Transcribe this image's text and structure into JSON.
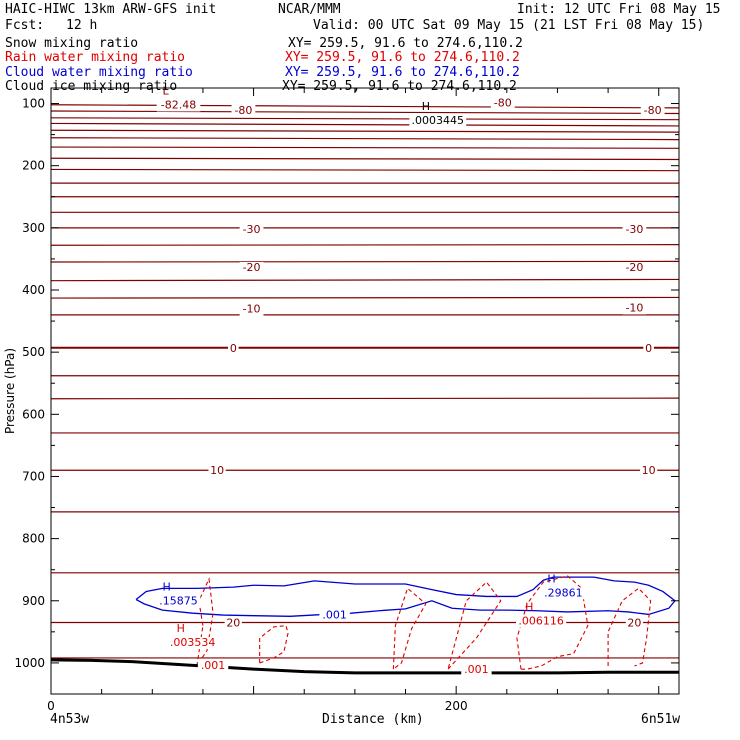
{
  "header": {
    "model_title": "HAIC-HIWC 13km ARW-GFS init",
    "center": "NCAR/MMM",
    "init_label": "Init: 12 UTC Fri 08 May 15",
    "fcst_label": "Fcst:",
    "fcst_value": "12 h",
    "valid_label": "Valid: 00 UTC Sat 09 May 15 (21 LST Fri 08 May 15)"
  },
  "fields": [
    {
      "name": "Snow mixing ratio",
      "xy": "XY= 259.5, 91.6 to 274.6,110.2",
      "color": "#000000"
    },
    {
      "name": "Rain water mixing ratio",
      "xy": "XY= 259.5, 91.6 to 274.6,110.2",
      "color": "#e00000"
    },
    {
      "name": "Cloud water mixing ratio",
      "xy": "XY= 259.5, 91.6 to 274.6,110.2",
      "color": "#0000d0"
    },
    {
      "name": "Cloud ice mixing ratio",
      "xy": "XY= 259.5, 91.6 to 274.6,110.2",
      "color": "#000000"
    }
  ],
  "chart_data": {
    "type": "line",
    "subtype": "vertical cross-section contour plot",
    "xlabel": "Distance (km)",
    "ylabel": "Pressure (hPa)",
    "xlim": [
      0,
      310
    ],
    "ylim": [
      1050,
      75
    ],
    "x_ticks": [
      0,
      200
    ],
    "y_ticks": [
      100,
      200,
      300,
      400,
      500,
      600,
      700,
      800,
      900,
      1000
    ],
    "left_endpoint": "4n53w",
    "right_endpoint": "6n51w",
    "colors": {
      "temperature": "#800000",
      "rain": "#e00000",
      "cloud_water": "#0000d0",
      "terrain": "#000000"
    },
    "temperature_contours": [
      {
        "label": "-80",
        "left": 102,
        "right": 107
      },
      {
        "label": "",
        "left": 112,
        "right": 116
      },
      {
        "label": "",
        "left": 123,
        "right": 126
      },
      {
        "label": "",
        "left": 132,
        "right": 136
      },
      {
        "label": "",
        "left": 143,
        "right": 146
      },
      {
        "label": "",
        "left": 155,
        "right": 158
      },
      {
        "label": "",
        "left": 170,
        "right": 172
      },
      {
        "label": "",
        "left": 188,
        "right": 190
      },
      {
        "label": "",
        "left": 206,
        "right": 208
      },
      {
        "label": "",
        "left": 228,
        "right": 228
      },
      {
        "label": "",
        "left": 250,
        "right": 250
      },
      {
        "label": "-30",
        "left": 275,
        "right": 275
      },
      {
        "label": "",
        "left": 300,
        "right": 300
      },
      {
        "label": "-20",
        "left": 328,
        "right": 327
      },
      {
        "label": "",
        "left": 355,
        "right": 354
      },
      {
        "label": "-10",
        "left": 385,
        "right": 383
      },
      {
        "label": "",
        "left": 413,
        "right": 412
      },
      {
        "label": "",
        "left": 440,
        "right": 440
      },
      {
        "label": "0",
        "left": 493,
        "right": 493
      },
      {
        "label": "",
        "left": 538,
        "right": 538
      },
      {
        "label": "",
        "left": 575,
        "right": 574
      },
      {
        "label": "",
        "left": 630,
        "right": 630
      },
      {
        "label": "10",
        "left": 690,
        "right": 690
      },
      {
        "label": "",
        "left": 757,
        "right": 757
      },
      {
        "label": "",
        "left": 855,
        "right": 855
      },
      {
        "label": "20",
        "left": 935,
        "right": 935
      },
      {
        "label": "",
        "left": 992,
        "right": 992
      }
    ],
    "temperature_labels": [
      {
        "text": "-80",
        "x": 95,
        "p": 110
      },
      {
        "text": "-80",
        "x": 223,
        "p": 98
      },
      {
        "text": "-80",
        "x": 297,
        "p": 110
      },
      {
        "text": "-30",
        "x": 99,
        "p": 302
      },
      {
        "text": "-30",
        "x": 288,
        "p": 302
      },
      {
        "text": "-20",
        "x": 99,
        "p": 363
      },
      {
        "text": "-20",
        "x": 288,
        "p": 363
      },
      {
        "text": "-10",
        "x": 99,
        "p": 430
      },
      {
        "text": "-10",
        "x": 288,
        "p": 428
      },
      {
        "text": "0",
        "x": 90,
        "p": 493
      },
      {
        "text": "0",
        "x": 295,
        "p": 493
      },
      {
        "text": "10",
        "x": 82,
        "p": 690
      },
      {
        "text": "10",
        "x": 295,
        "p": 690
      },
      {
        "text": "20",
        "x": 90,
        "p": 935
      },
      {
        "text": "20",
        "x": 288,
        "p": 935
      }
    ],
    "extrema": [
      {
        "letter": "L",
        "value": "-82.48",
        "x": 58,
        "p": 95,
        "color": "#800000"
      },
      {
        "letter": "H",
        "value": ".0003445",
        "x": 186,
        "p": 120,
        "color": "#000000"
      },
      {
        "letter": "H",
        "value": ".15875",
        "x": 58,
        "p": 893,
        "color": "#0000d0"
      },
      {
        "letter": "H",
        "value": ".29861",
        "x": 248,
        "p": 880,
        "color": "#0000d0"
      },
      {
        "letter": "H",
        "value": ".003534",
        "x": 65,
        "p": 960,
        "color": "#e00000"
      },
      {
        "letter": "H",
        "value": ".006116",
        "x": 237,
        "p": 925,
        "color": "#e00000"
      }
    ],
    "contour_value_labels": [
      {
        "text": ".001",
        "x": 140,
        "p": 922,
        "color": "#0000d0"
      },
      {
        "text": ".001",
        "x": 80,
        "p": 1003,
        "color": "#e00000"
      },
      {
        "text": ".001",
        "x": 210,
        "p": 1010,
        "color": "#e00000"
      }
    ],
    "cloud_water_contour": {
      "label": ".001",
      "x": [
        42,
        47,
        55,
        72,
        90,
        100,
        115,
        130,
        150,
        175,
        188,
        200,
        215,
        230,
        238,
        243,
        248,
        268,
        278,
        288,
        295,
        302,
        308,
        305,
        295,
        285,
        275,
        255,
        240,
        225,
        212,
        198,
        188,
        175,
        162,
        148,
        135,
        118,
        100,
        85,
        70,
        55,
        46,
        42
      ],
      "p": [
        898,
        885,
        880,
        880,
        878,
        875,
        876,
        868,
        873,
        873,
        882,
        890,
        893,
        893,
        882,
        867,
        862,
        862,
        868,
        870,
        875,
        885,
        900,
        912,
        922,
        918,
        916,
        918,
        916,
        915,
        915,
        912,
        900,
        913,
        916,
        920,
        922,
        925,
        924,
        923,
        920,
        915,
        905,
        898
      ]
    },
    "rain_contours": [
      {
        "x": [
          75,
          73,
          78,
          80,
          77,
          72,
          75
        ],
        "p": [
          940,
          900,
          865,
          920,
          980,
          1005,
          940
        ]
      },
      {
        "x": [
          103,
          110,
          115,
          117,
          116,
          110,
          103,
          103
        ],
        "p": [
          1000,
          992,
          982,
          952,
          940,
          942,
          960,
          1000
        ]
      },
      {
        "x": [
          169,
          170,
          176,
          185,
          178,
          173,
          169
        ],
        "p": [
          1010,
          940,
          880,
          905,
          945,
          1000,
          1010
        ]
      },
      {
        "x": [
          196,
          210,
          222,
          215,
          205,
          196
        ],
        "p": [
          1010,
          960,
          900,
          870,
          900,
          1010
        ]
      },
      {
        "x": [
          232,
          230,
          235,
          243,
          255,
          262,
          265,
          258,
          250,
          242,
          235,
          232
        ],
        "p": [
          1010,
          960,
          905,
          870,
          860,
          880,
          940,
          985,
          990,
          1005,
          1010,
          1010
        ]
      },
      {
        "x": [
          275,
          275,
          282,
          290,
          296,
          294,
          292,
          288
        ],
        "p": [
          1005,
          950,
          900,
          880,
          900,
          960,
          1000,
          1005
        ]
      }
    ],
    "terrain": {
      "x": [
        0,
        20,
        40,
        60,
        80,
        100,
        125,
        150,
        175,
        200,
        225,
        250,
        275,
        310
      ],
      "p": [
        995,
        996,
        998,
        1002,
        1006,
        1010,
        1014,
        1016,
        1016,
        1016,
        1016,
        1016,
        1015,
        1015
      ]
    }
  }
}
